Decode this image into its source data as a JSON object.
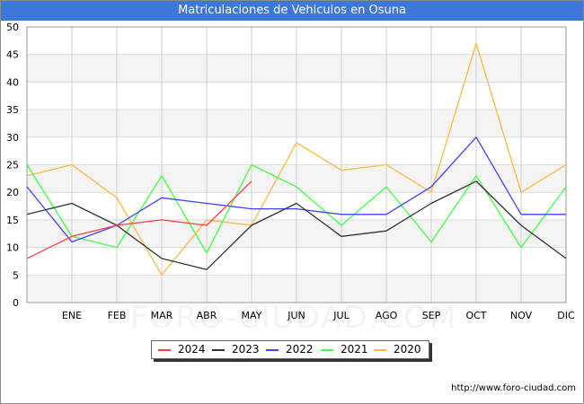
{
  "chart_data": {
    "type": "line",
    "title": "Matriculaciones de Vehiculos en Osuna",
    "categories": [
      "",
      "ENE",
      "FEB",
      "MAR",
      "ABR",
      "MAY",
      "JUN",
      "JUL",
      "AGO",
      "SEP",
      "OCT",
      "NOV",
      "DIC"
    ],
    "ylim": [
      0,
      50
    ],
    "yticks": [
      0,
      5,
      10,
      15,
      20,
      25,
      30,
      35,
      40,
      45,
      50
    ],
    "xlabel": "",
    "ylabel": "",
    "grid": true,
    "legend_position": "bottom-center",
    "series": [
      {
        "name": "2024",
        "color": "#ff4040",
        "values": [
          8,
          12,
          14,
          15,
          14,
          22,
          null,
          null,
          null,
          null,
          null,
          null,
          null
        ]
      },
      {
        "name": "2023",
        "color": "#333333",
        "values": [
          16,
          18,
          14,
          8,
          6,
          14,
          18,
          12,
          13,
          18,
          22,
          14,
          8
        ]
      },
      {
        "name": "2022",
        "color": "#4040ff",
        "values": [
          21,
          11,
          14,
          19,
          18,
          17,
          17,
          16,
          16,
          21,
          30,
          16,
          16
        ]
      },
      {
        "name": "2021",
        "color": "#40ff40",
        "values": [
          25,
          12,
          10,
          23,
          9,
          25,
          21,
          14,
          21,
          11,
          23,
          10,
          21
        ]
      },
      {
        "name": "2020",
        "color": "#ffb840",
        "values": [
          23,
          25,
          19,
          5,
          15,
          14,
          29,
          24,
          25,
          20,
          47,
          20,
          25
        ]
      }
    ]
  },
  "source_text": "http://www.foro-ciudad.com",
  "watermark_text": "FORO-CIUDAD.COM"
}
